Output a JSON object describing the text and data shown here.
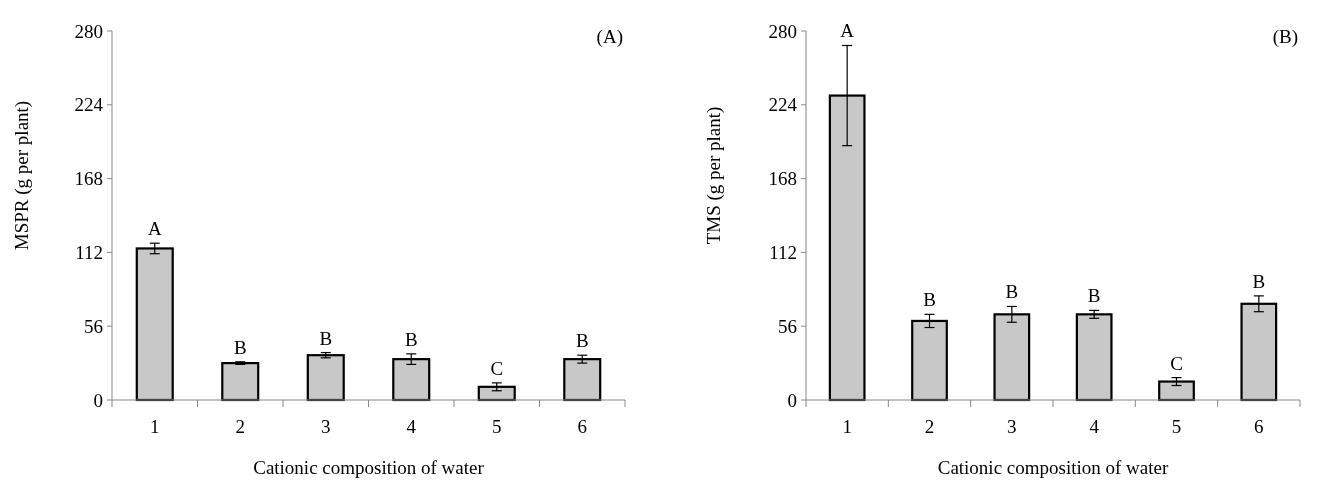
{
  "chart_data": [
    {
      "type": "bar",
      "categories": [
        "1",
        "2",
        "3",
        "4",
        "5",
        "6"
      ],
      "values": [
        115,
        28,
        34,
        31,
        10,
        31
      ],
      "errors": [
        4,
        1,
        2,
        4,
        3,
        3
      ],
      "color": "#c8c8c8",
      "xlabel": "Cationic composition of water",
      "ylabel": "MSPR (g per plant)",
      "ylim": [
        0,
        280
      ],
      "yticks": [
        0,
        56,
        112,
        168,
        224,
        280
      ],
      "grid": false,
      "annotations": [
        "(A)",
        {
          "text": "A",
          "x": "1",
          "y": 119
        },
        {
          "text": "B",
          "x": "2",
          "y": 29
        },
        {
          "text": "B",
          "x": "3",
          "y": 36
        },
        {
          "text": "B",
          "x": "4",
          "y": 35
        },
        {
          "text": "C",
          "x": "5",
          "y": 13
        },
        {
          "text": "B",
          "x": "6",
          "y": 34
        }
      ]
    },
    {
      "type": "bar",
      "categories": [
        "1",
        "2",
        "3",
        "4",
        "5",
        "6"
      ],
      "values": [
        231,
        60,
        65,
        65,
        14,
        73
      ],
      "errors": [
        38,
        5,
        6,
        3,
        3,
        6
      ],
      "color": "#c8c8c8",
      "xlabel": "Cationic composition of water",
      "ylabel": "TMS  (g per plant)",
      "ylim": [
        0,
        280
      ],
      "yticks": [
        0,
        56,
        112,
        168,
        224,
        280
      ],
      "grid": false,
      "annotations": [
        "(B)",
        {
          "text": "A",
          "x": "1",
          "y": 269
        },
        {
          "text": "B",
          "x": "2",
          "y": 65
        },
        {
          "text": "B",
          "x": "3",
          "y": 71
        },
        {
          "text": "B",
          "x": "4",
          "y": 68
        },
        {
          "text": "C",
          "x": "5",
          "y": 17
        },
        {
          "text": "B",
          "x": "6",
          "y": 79
        }
      ]
    }
  ]
}
